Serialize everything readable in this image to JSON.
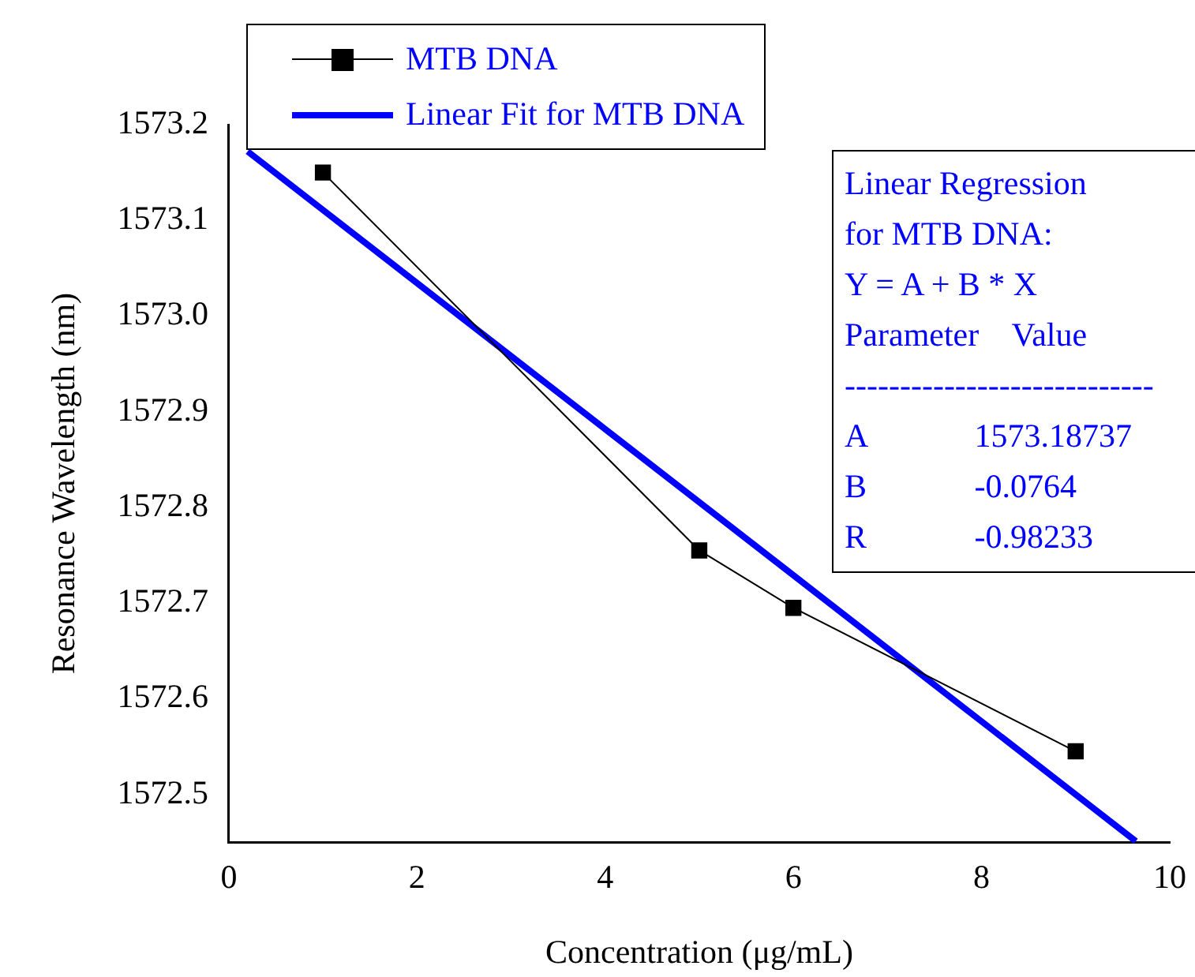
{
  "chart_data": {
    "type": "line",
    "xlabel": "Concentration (μg/mL)",
    "ylabel": "Resonance Wavelength (nm)",
    "xlim": [
      0,
      10
    ],
    "xticks": [
      0,
      2,
      4,
      6,
      8,
      10
    ],
    "ylim": [
      1572.45,
      1573.2
    ],
    "yticks": [
      1572.5,
      1572.6,
      1572.7,
      1572.8,
      1572.9,
      {
        "value": 1573,
        "label": "1573.0"
      },
      1573.1,
      1573.2
    ],
    "grid": false,
    "legend": "top left",
    "marker": "square",
    "line_style": "solid",
    "series": [
      {
        "name": "MTB DNA",
        "color": "#000000",
        "x": [
          1,
          5,
          6,
          9
        ],
        "values": [
          1573.15,
          1572.755,
          1572.695,
          1572.545
        ]
      },
      {
        "name": "Linear Fit for MTB DNA",
        "marker": "none",
        "color": "#0000ff",
        "x": [
          0.2,
          9.64
        ],
        "values": [
          1573.172,
          1572.451
        ]
      }
    ],
    "annotations": [
      "Linear Regression",
      "for MTB DNA:",
      "Y = A + B * X",
      "Parameter    Value",
      "----------------------------",
      "A             1573.18737",
      "B             -0.0764",
      "R             -0.98233"
    ]
  }
}
